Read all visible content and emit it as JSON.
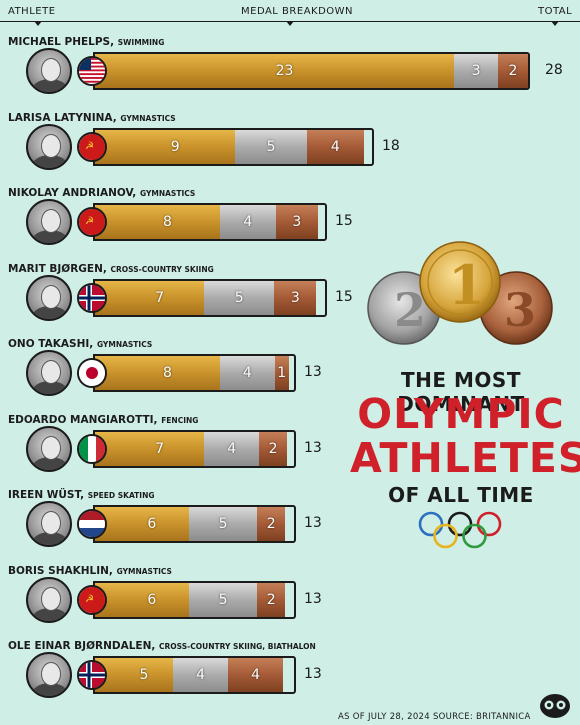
{
  "header": {
    "athlete": "ATHLETE",
    "medal_breakdown": "MEDAL BREAKDOWN",
    "total": "TOTAL"
  },
  "title": {
    "line1": "THE MOST DOMINANT",
    "line2": "OLYMPIC",
    "line3": "ATHLETES",
    "line4": "OF ALL TIME"
  },
  "footer": "AS OF JULY 28, 2024 SOURCE: BRITANNICA",
  "colors": {
    "gold": "#c9922b",
    "silver": "#ababab",
    "bronze": "#a45a36",
    "title_red": "#d0202a",
    "background": "#cfeee6"
  },
  "chart_data": {
    "type": "bar",
    "orientation": "horizontal",
    "stacked": true,
    "categories": [
      "MICHAEL PHELPS",
      "LARISA LATYNINA",
      "NIKOLAY ANDRIANOV",
      "MARIT BJØRGEN",
      "ONO TAKASHI",
      "EDOARDO MANGIAROTTI",
      "IREEN WÜST",
      "BORIS SHAKHLIN",
      "OLE EINAR BJØRNDALEN"
    ],
    "sports": [
      "SWIMMING",
      "GYMNASTICS",
      "GYMNASTICS",
      "CROSS-COUNTRY SKIING",
      "GYMNASTICS",
      "FENCING",
      "SPEED SKATING",
      "GYMNASTICS",
      "CROSS-COUNTRY SKIING, BIATHALON"
    ],
    "flags": [
      "usa",
      "ussr",
      "ussr",
      "norway",
      "japan",
      "italy",
      "netherlands",
      "ussr",
      "norway"
    ],
    "series": [
      {
        "name": "gold",
        "values": [
          23,
          9,
          8,
          7,
          8,
          7,
          6,
          6,
          5
        ]
      },
      {
        "name": "silver",
        "values": [
          3,
          5,
          4,
          5,
          4,
          4,
          5,
          5,
          4
        ]
      },
      {
        "name": "bronze",
        "values": [
          2,
          4,
          3,
          3,
          1,
          2,
          2,
          2,
          4
        ]
      }
    ],
    "totals": [
      28,
      18,
      15,
      15,
      13,
      13,
      13,
      13,
      13
    ],
    "xlim": [
      0,
      28
    ]
  }
}
